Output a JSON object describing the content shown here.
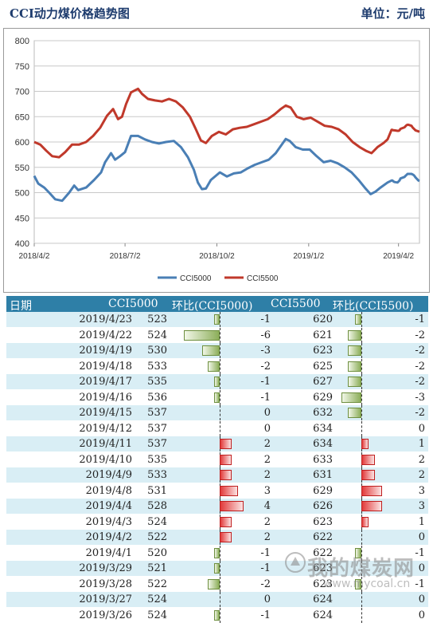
{
  "header": {
    "title": "CCI动力煤价格趋势图",
    "unit": "单位：元/吨"
  },
  "colors": {
    "cci5000": "#4a7fb5",
    "cci5500": "#c0392b",
    "table_header": "#2e7fa7",
    "row_alt": "#d9eef5",
    "neg_bar": "#8cae5a",
    "pos_bar": "#e23a3a"
  },
  "chart_data": {
    "type": "line",
    "title": "",
    "x_ticks": [
      "2018/4/2",
      "2018/7/2",
      "2018/10/2",
      "2019/1/2",
      "2019/4/2"
    ],
    "x_start": "2018/4/2",
    "x_end": "2019/4/23",
    "ylim": [
      400,
      800
    ],
    "y_ticks": [
      400,
      450,
      500,
      550,
      600,
      650,
      700,
      750,
      800
    ],
    "grid": "horizontal",
    "legend": "bottom",
    "series": [
      {
        "name": "CCI5000",
        "color": "#4a7fb5",
        "points": [
          [
            "2018/4/2",
            533
          ],
          [
            "2018/4/6",
            518
          ],
          [
            "2018/4/12",
            510
          ],
          [
            "2018/4/17",
            500
          ],
          [
            "2018/4/23",
            487
          ],
          [
            "2018/4/30",
            484
          ],
          [
            "2018/5/7",
            500
          ],
          [
            "2018/5/12",
            514
          ],
          [
            "2018/5/16",
            505
          ],
          [
            "2018/5/24",
            510
          ],
          [
            "2018/6/1",
            525
          ],
          [
            "2018/6/8",
            540
          ],
          [
            "2018/6/12",
            560
          ],
          [
            "2018/6/18",
            578
          ],
          [
            "2018/6/22",
            565
          ],
          [
            "2018/6/27",
            572
          ],
          [
            "2018/7/2",
            580
          ],
          [
            "2018/7/8",
            612
          ],
          [
            "2018/7/15",
            612
          ],
          [
            "2018/7/22",
            605
          ],
          [
            "2018/7/29",
            600
          ],
          [
            "2018/8/5",
            597
          ],
          [
            "2018/8/12",
            600
          ],
          [
            "2018/8/20",
            602
          ],
          [
            "2018/8/27",
            590
          ],
          [
            "2018/9/3",
            570
          ],
          [
            "2018/9/9",
            545
          ],
          [
            "2018/9/13",
            520
          ],
          [
            "2018/9/17",
            507
          ],
          [
            "2018/9/21",
            508
          ],
          [
            "2018/9/26",
            525
          ],
          [
            "2018/10/5",
            540
          ],
          [
            "2018/10/12",
            532
          ],
          [
            "2018/10/19",
            538
          ],
          [
            "2018/10/26",
            540
          ],
          [
            "2018/11/2",
            548
          ],
          [
            "2018/11/9",
            555
          ],
          [
            "2018/11/16",
            560
          ],
          [
            "2018/11/23",
            565
          ],
          [
            "2018/11/30",
            578
          ],
          [
            "2018/12/5",
            592
          ],
          [
            "2018/12/10",
            606
          ],
          [
            "2018/12/14",
            602
          ],
          [
            "2018/12/20",
            590
          ],
          [
            "2018/12/27",
            585
          ],
          [
            "2019/1/3",
            585
          ],
          [
            "2019/1/10",
            572
          ],
          [
            "2019/1/17",
            560
          ],
          [
            "2019/1/24",
            563
          ],
          [
            "2019/1/31",
            558
          ],
          [
            "2019/2/7",
            550
          ],
          [
            "2019/2/14",
            540
          ],
          [
            "2019/2/21",
            525
          ],
          [
            "2019/2/28",
            508
          ],
          [
            "2019/3/5",
            497
          ],
          [
            "2019/3/10",
            502
          ],
          [
            "2019/3/15",
            510
          ],
          [
            "2019/3/22",
            520
          ],
          [
            "2019/3/26",
            524
          ],
          [
            "2019/3/27",
            524
          ],
          [
            "2019/3/28",
            522
          ],
          [
            "2019/3/29",
            521
          ],
          [
            "2019/4/1",
            520
          ],
          [
            "2019/4/2",
            522
          ],
          [
            "2019/4/3",
            524
          ],
          [
            "2019/4/4",
            528
          ],
          [
            "2019/4/8",
            531
          ],
          [
            "2019/4/9",
            533
          ],
          [
            "2019/4/10",
            535
          ],
          [
            "2019/4/11",
            537
          ],
          [
            "2019/4/12",
            537
          ],
          [
            "2019/4/15",
            537
          ],
          [
            "2019/4/16",
            536
          ],
          [
            "2019/4/17",
            535
          ],
          [
            "2019/4/18",
            533
          ],
          [
            "2019/4/19",
            530
          ],
          [
            "2019/4/22",
            524
          ],
          [
            "2019/4/23",
            523
          ]
        ]
      },
      {
        "name": "CCI5500",
        "color": "#c0392b",
        "points": [
          [
            "2018/4/2",
            600
          ],
          [
            "2018/4/8",
            595
          ],
          [
            "2018/4/14",
            583
          ],
          [
            "2018/4/20",
            572
          ],
          [
            "2018/4/27",
            570
          ],
          [
            "2018/5/3",
            580
          ],
          [
            "2018/5/10",
            595
          ],
          [
            "2018/5/17",
            595
          ],
          [
            "2018/5/24",
            600
          ],
          [
            "2018/5/31",
            612
          ],
          [
            "2018/6/7",
            628
          ],
          [
            "2018/6/14",
            652
          ],
          [
            "2018/6/20",
            665
          ],
          [
            "2018/6/25",
            645
          ],
          [
            "2018/6/29",
            650
          ],
          [
            "2018/7/3",
            675
          ],
          [
            "2018/7/8",
            698
          ],
          [
            "2018/7/15",
            705
          ],
          [
            "2018/7/19",
            695
          ],
          [
            "2018/7/25",
            685
          ],
          [
            "2018/8/1",
            682
          ],
          [
            "2018/8/8",
            680
          ],
          [
            "2018/8/15",
            685
          ],
          [
            "2018/8/22",
            680
          ],
          [
            "2018/8/29",
            668
          ],
          [
            "2018/9/5",
            650
          ],
          [
            "2018/9/11",
            625
          ],
          [
            "2018/9/16",
            603
          ],
          [
            "2018/9/21",
            598
          ],
          [
            "2018/9/27",
            612
          ],
          [
            "2018/10/4",
            620
          ],
          [
            "2018/10/11",
            615
          ],
          [
            "2018/10/18",
            625
          ],
          [
            "2018/10/25",
            628
          ],
          [
            "2018/11/1",
            630
          ],
          [
            "2018/11/8",
            635
          ],
          [
            "2018/11/15",
            640
          ],
          [
            "2018/11/22",
            645
          ],
          [
            "2018/11/29",
            655
          ],
          [
            "2018/12/5",
            665
          ],
          [
            "2018/12/10",
            672
          ],
          [
            "2018/12/15",
            668
          ],
          [
            "2018/12/21",
            650
          ],
          [
            "2018/12/28",
            645
          ],
          [
            "2019/1/4",
            648
          ],
          [
            "2019/1/11",
            640
          ],
          [
            "2019/1/18",
            632
          ],
          [
            "2019/1/25",
            630
          ],
          [
            "2019/2/1",
            625
          ],
          [
            "2019/2/8",
            615
          ],
          [
            "2019/2/15",
            600
          ],
          [
            "2019/2/22",
            590
          ],
          [
            "2019/3/1",
            582
          ],
          [
            "2019/3/6",
            578
          ],
          [
            "2019/3/12",
            590
          ],
          [
            "2019/3/18",
            598
          ],
          [
            "2019/3/22",
            605
          ],
          [
            "2019/3/26",
            624
          ],
          [
            "2019/3/27",
            624
          ],
          [
            "2019/3/28",
            623
          ],
          [
            "2019/3/29",
            623
          ],
          [
            "2019/4/1",
            622
          ],
          [
            "2019/4/2",
            622
          ],
          [
            "2019/4/3",
            623
          ],
          [
            "2019/4/4",
            626
          ],
          [
            "2019/4/8",
            629
          ],
          [
            "2019/4/9",
            631
          ],
          [
            "2019/4/10",
            633
          ],
          [
            "2019/4/11",
            634
          ],
          [
            "2019/4/12",
            634
          ],
          [
            "2019/4/15",
            632
          ],
          [
            "2019/4/16",
            629
          ],
          [
            "2019/4/17",
            627
          ],
          [
            "2019/4/18",
            625
          ],
          [
            "2019/4/19",
            623
          ],
          [
            "2019/4/22",
            621
          ],
          [
            "2019/4/23",
            620
          ]
        ]
      }
    ]
  },
  "table": {
    "headers": [
      "日期",
      "CCI5000",
      "环比(CCI5000)",
      "CCI5500",
      "环比(CCI5500)"
    ],
    "rows": [
      {
        "date": "2019/4/23",
        "v1": "523",
        "c1": "-1",
        "v2": "620",
        "c2": "-1"
      },
      {
        "date": "2019/4/22",
        "v1": "524",
        "c1": "-6",
        "v2": "621",
        "c2": "-2"
      },
      {
        "date": "2019/4/19",
        "v1": "530",
        "c1": "-3",
        "v2": "623",
        "c2": "-2"
      },
      {
        "date": "2019/4/18",
        "v1": "533",
        "c1": "-2",
        "v2": "625",
        "c2": "-2"
      },
      {
        "date": "2019/4/17",
        "v1": "535",
        "c1": "-1",
        "v2": "627",
        "c2": "-2"
      },
      {
        "date": "2019/4/16",
        "v1": "536",
        "c1": "-1",
        "v2": "629",
        "c2": "-3"
      },
      {
        "date": "2019/4/15",
        "v1": "537",
        "c1": "0",
        "v2": "632",
        "c2": "-2"
      },
      {
        "date": "2019/4/12",
        "v1": "537",
        "c1": "0",
        "v2": "634",
        "c2": "0"
      },
      {
        "date": "2019/4/11",
        "v1": "537",
        "c1": "2",
        "v2": "634",
        "c2": "1"
      },
      {
        "date": "2019/4/10",
        "v1": "535",
        "c1": "2",
        "v2": "633",
        "c2": "2"
      },
      {
        "date": "2019/4/9",
        "v1": "533",
        "c1": "2",
        "v2": "631",
        "c2": "2"
      },
      {
        "date": "2019/4/8",
        "v1": "531",
        "c1": "3",
        "v2": "629",
        "c2": "3"
      },
      {
        "date": "2019/4/4",
        "v1": "528",
        "c1": "4",
        "v2": "626",
        "c2": "3"
      },
      {
        "date": "2019/4/3",
        "v1": "524",
        "c1": "2",
        "v2": "623",
        "c2": "1"
      },
      {
        "date": "2019/4/2",
        "v1": "522",
        "c1": "2",
        "v2": "622",
        "c2": "0"
      },
      {
        "date": "2019/4/1",
        "v1": "520",
        "c1": "-1",
        "v2": "622",
        "c2": "-1"
      },
      {
        "date": "2019/3/29",
        "v1": "521",
        "c1": "-1",
        "v2": "623",
        "c2": "0"
      },
      {
        "date": "2019/3/28",
        "v1": "522",
        "c1": "-2",
        "v2": "623",
        "c2": "-1"
      },
      {
        "date": "2019/3/27",
        "v1": "524",
        "c1": "0",
        "v2": "624",
        "c2": "0"
      },
      {
        "date": "2019/3/26",
        "v1": "524",
        "c1": "-1",
        "v2": "624",
        "c2": "0"
      }
    ]
  },
  "watermark": {
    "brand": "我的煤炭网",
    "url": "www.mycoal.cn"
  }
}
